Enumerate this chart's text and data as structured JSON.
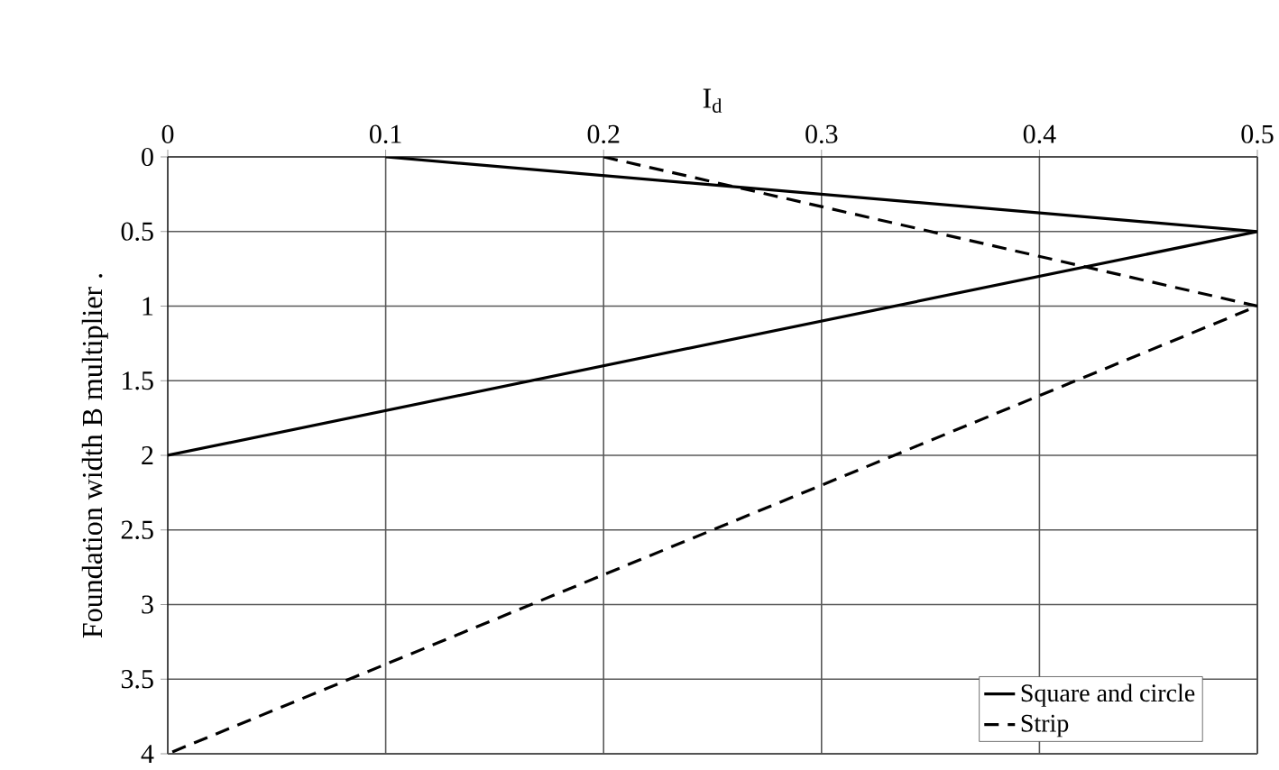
{
  "chart_data": {
    "type": "line",
    "xlabel": "I$_{d}$",
    "ylabel": "Foundation width B multiplier .",
    "xlim": [
      0,
      0.5
    ],
    "xticks": [
      0,
      0.1,
      0.2,
      0.3,
      0.4,
      0.5
    ],
    "ylim": [
      4,
      0
    ],
    "yticks": [
      0,
      0.5,
      1,
      1.5,
      2,
      2.5,
      3,
      3.5,
      4
    ],
    "grid": true,
    "legend": "bottom right",
    "marker": "none",
    "series": [
      {
        "name": "Square and circle",
        "color": "#000000",
        "line_style": "solid",
        "x": [
          0.1,
          0.5,
          0
        ],
        "values": [
          0,
          0.5,
          2
        ]
      },
      {
        "name": "Strip",
        "color": "#000000",
        "line_style": "dashed",
        "x": [
          0.2,
          0.5,
          0
        ],
        "values": [
          0,
          1,
          4
        ]
      }
    ]
  }
}
